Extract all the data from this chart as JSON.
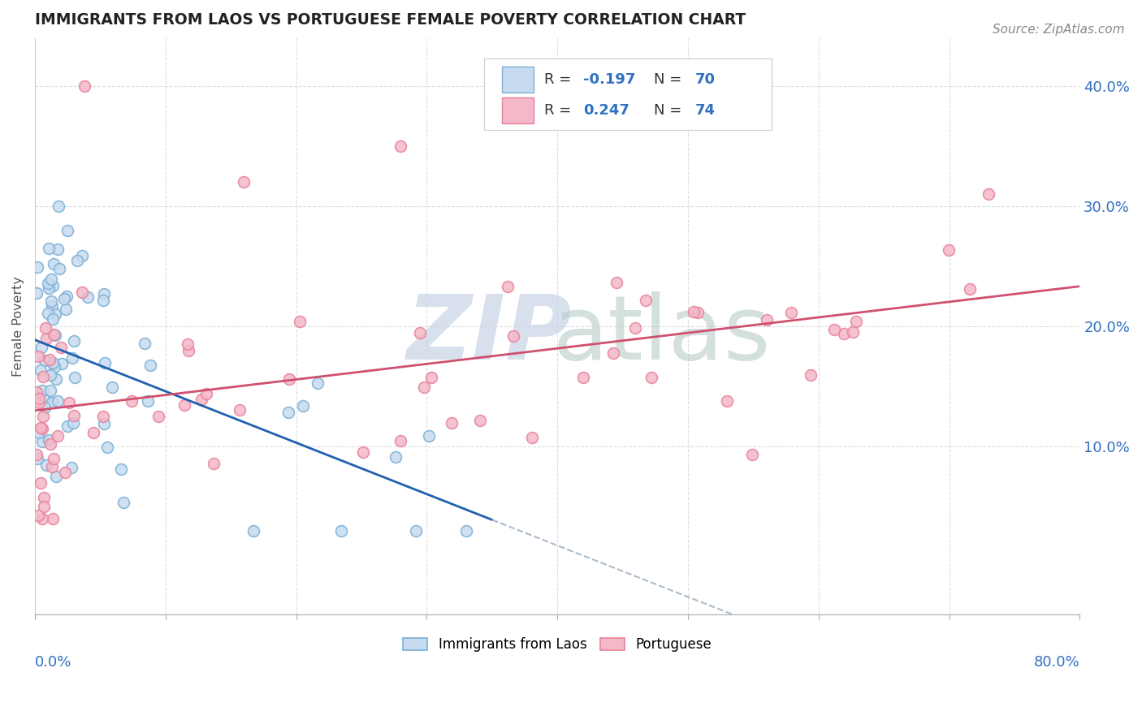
{
  "title": "IMMIGRANTS FROM LAOS VS PORTUGUESE FEMALE POVERTY CORRELATION CHART",
  "source": "Source: ZipAtlas.com",
  "ylabel": "Female Poverty",
  "legend_label1": "Immigrants from Laos",
  "legend_label2": "Portuguese",
  "R1": -0.197,
  "N1": 70,
  "R2": 0.247,
  "N2": 74,
  "blue_edge": "#7bafd4",
  "blue_face": "#c6dbef",
  "pink_edge": "#e8829a",
  "pink_face": "#f4b8c8",
  "trend_blue": "#2060b0",
  "trend_pink": "#d05070",
  "trend_dash_color": "#aabbcc",
  "ytick_color": "#3070c0",
  "xlim": [
    0.0,
    0.8
  ],
  "ylim": [
    -0.04,
    0.44
  ],
  "yticks": [
    0.1,
    0.2,
    0.3,
    0.4
  ],
  "ytick_labels": [
    "10.0%",
    "20.0%",
    "30.0%",
    "40.0%"
  ],
  "grid_color": "#dddddd",
  "watermark_zip_color": "#c8d4e8",
  "watermark_atlas_color": "#b8ccc8"
}
